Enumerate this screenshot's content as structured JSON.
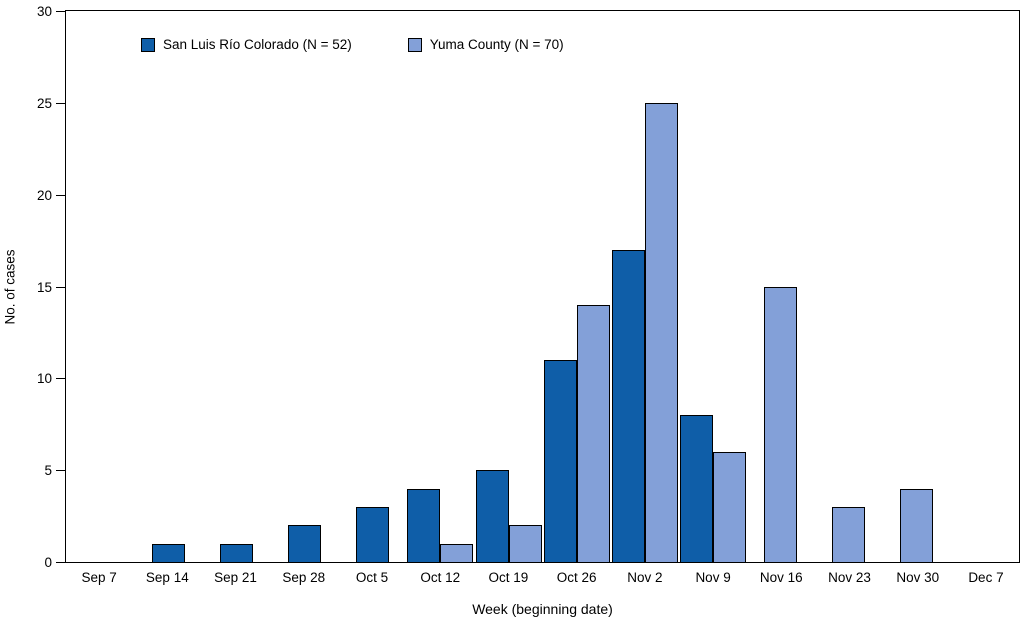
{
  "chart_data": {
    "type": "bar",
    "title": "",
    "xlabel": "Week (beginning date)",
    "ylabel": "No. of cases",
    "ylim": [
      0,
      30
    ],
    "yticks": [
      0,
      5,
      10,
      15,
      20,
      25,
      30
    ],
    "grid": false,
    "legend_position": "top-left",
    "categories": [
      "Sep 7",
      "Sep 14",
      "Sep 21",
      "Sep 28",
      "Oct 5",
      "Oct 12",
      "Oct 19",
      "Oct 26",
      "Nov 2",
      "Nov 9",
      "Nov 16",
      "Nov 23",
      "Nov 30",
      "Dec 7"
    ],
    "series": [
      {
        "name": "San Luis Río Colorado (N = 52)",
        "color": "#0f5ea8",
        "values": [
          0,
          1,
          1,
          2,
          3,
          4,
          5,
          11,
          17,
          8,
          0,
          0,
          0,
          0
        ]
      },
      {
        "name": "Yuma County (N = 70)",
        "color": "#83a0d8",
        "values": [
          0,
          0,
          0,
          0,
          0,
          1,
          2,
          14,
          25,
          6,
          15,
          3,
          4,
          0
        ]
      }
    ]
  }
}
